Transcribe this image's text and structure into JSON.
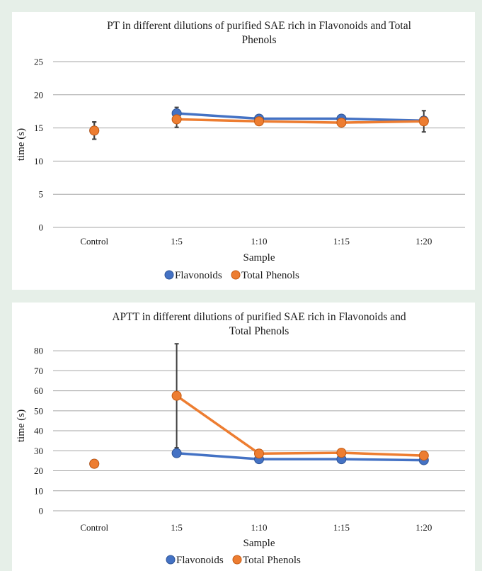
{
  "colors": {
    "flavonoids": "#4472c4",
    "total_phenols": "#ed7d31",
    "grid": "#a6a6a6",
    "error_bar": "#404040",
    "background": "#e6efe8"
  },
  "chart_data": [
    {
      "type": "line",
      "title_lines": [
        "PT in different dilutions of purified SAE rich in Flavonoids and Total",
        "Phenols"
      ],
      "xlabel": "Sample",
      "ylabel": "time (s)",
      "categories": [
        "Control",
        "1:5",
        "1:10",
        "1:15",
        "1:20"
      ],
      "ylim": [
        0,
        25
      ],
      "yticks": [
        "0",
        "5",
        "10",
        "15",
        "20",
        "25"
      ],
      "grid": true,
      "legend_position": "bottom",
      "series": [
        {
          "name": "Flavonoids",
          "color": "#4472c4",
          "values": [
            14.6,
            17.2,
            16.4,
            16.4,
            16.1
          ],
          "errors": [
            1.3,
            0.9,
            0.3,
            0.3,
            0.4
          ]
        },
        {
          "name": "Total Phenols",
          "color": "#ed7d31",
          "values": [
            14.6,
            16.3,
            16.0,
            15.8,
            16.0
          ],
          "errors": [
            1.3,
            1.2,
            0.3,
            0.3,
            1.6
          ]
        }
      ]
    },
    {
      "type": "line",
      "title_lines": [
        "APTT in different dilutions of purified SAE rich in Flavonoids and",
        "Total Phenols"
      ],
      "xlabel": "Sample",
      "ylabel": "time (s)",
      "categories": [
        "Control",
        "1:5",
        "1:10",
        "1:15",
        "1:20"
      ],
      "ylim": [
        0,
        85
      ],
      "yticks": [
        "0",
        "10",
        "20",
        "30",
        "40",
        "50",
        "60",
        "70",
        "80"
      ],
      "grid": true,
      "legend_position": "bottom",
      "series": [
        {
          "name": "Flavonoids",
          "color": "#4472c4",
          "values": [
            23.5,
            28.8,
            25.8,
            25.8,
            25.3
          ],
          "errors": [
            0,
            0,
            0,
            0,
            0
          ]
        },
        {
          "name": "Total Phenols",
          "color": "#ed7d31",
          "values": [
            23.5,
            57.5,
            28.6,
            29.0,
            27.6
          ],
          "errors": [
            0,
            26,
            0,
            0,
            0
          ]
        }
      ]
    }
  ]
}
